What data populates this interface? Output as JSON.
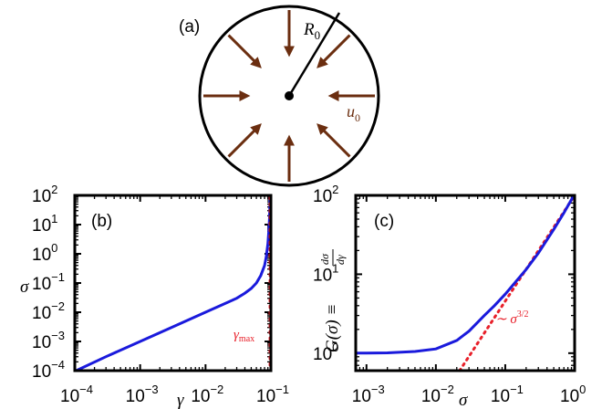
{
  "colors": {
    "arrow": "#6b2e10",
    "curve": "#1a1adc",
    "dotted": "#e8202a",
    "axis": "#000000"
  },
  "panel_a": {
    "label": "(a)",
    "radius_label": "R",
    "radius_sub": "0",
    "velocity_label": "u",
    "velocity_sub": "0",
    "arrow_count": 8
  },
  "chart_data": [
    {
      "type": "line",
      "panel_label": "(b)",
      "xlabel": "γ",
      "ylabel": "σ",
      "xscale": "log",
      "yscale": "log",
      "xlim": [
        0.0001,
        0.1
      ],
      "ylim": [
        0.0001,
        100
      ],
      "xticks": [
        {
          "base": "10",
          "exp": "−4",
          "value": 0.0001
        },
        {
          "base": "10",
          "exp": "−3",
          "value": 0.001
        },
        {
          "base": "10",
          "exp": "−2",
          "value": 0.01
        },
        {
          "base": "10",
          "exp": "−1",
          "value": 0.1
        }
      ],
      "yticks": [
        {
          "base": "10",
          "exp": "−4",
          "value": 0.0001
        },
        {
          "base": "10",
          "exp": "−3",
          "value": 0.001
        },
        {
          "base": "10",
          "exp": "−2",
          "value": 0.01
        },
        {
          "base": "10",
          "exp": "−1",
          "value": 0.1
        },
        {
          "base": "10",
          "exp": "0",
          "value": 1
        },
        {
          "base": "10",
          "exp": "1",
          "value": 10
        },
        {
          "base": "10",
          "exp": "2",
          "value": 100
        }
      ],
      "series": [
        {
          "x": [
            0.000105,
            0.0003,
            0.001,
            0.003,
            0.01,
            0.02,
            0.03,
            0.04,
            0.05,
            0.06,
            0.07,
            0.08,
            0.085,
            0.09,
            0.093,
            0.095,
            0.096,
            0.097
          ],
          "y": [
            0.0001,
            0.0003,
            0.001,
            0.003,
            0.01,
            0.02,
            0.03,
            0.045,
            0.065,
            0.1,
            0.18,
            0.4,
            0.8,
            2.2,
            6,
            15,
            30,
            100
          ]
        }
      ],
      "reference": {
        "type": "vline",
        "x": 0.097,
        "label_base": "γ",
        "label_sub": "max"
      }
    },
    {
      "type": "line",
      "panel_label": "(c)",
      "xlabel": "σ",
      "ylabel_main": "G(σ) ≡ ",
      "ylabel_num": "dσ",
      "ylabel_den": "dγ",
      "xscale": "log",
      "yscale": "log",
      "xlim": [
        0.0007,
        1
      ],
      "ylim": [
        0.6,
        100
      ],
      "xticks": [
        {
          "base": "10",
          "exp": "−3",
          "value": 0.001
        },
        {
          "base": "10",
          "exp": "−2",
          "value": 0.01
        },
        {
          "base": "10",
          "exp": "−1",
          "value": 0.1
        },
        {
          "base": "10",
          "exp": "0",
          "value": 1
        }
      ],
      "yticks": [
        {
          "base": "10",
          "exp": "0",
          "value": 1
        },
        {
          "base": "10",
          "exp": "1",
          "value": 10
        },
        {
          "base": "10",
          "exp": "2",
          "value": 100
        }
      ],
      "series": [
        {
          "x": [
            0.0007,
            0.001,
            0.002,
            0.005,
            0.01,
            0.02,
            0.03,
            0.05,
            0.07,
            0.1,
            0.2,
            0.3,
            0.5,
            0.7,
            0.95
          ],
          "y": [
            1.0,
            1.0,
            1.01,
            1.05,
            1.13,
            1.45,
            1.9,
            3.0,
            4.0,
            5.6,
            11.5,
            18.5,
            37,
            60,
            96
          ]
        }
      ],
      "reference": {
        "type": "power",
        "exponent": 1.5,
        "x_start": 0.022,
        "x_end": 1,
        "prefactor": 100,
        "label_prefix": "∼ σ",
        "label_exp": "3/2"
      }
    }
  ]
}
